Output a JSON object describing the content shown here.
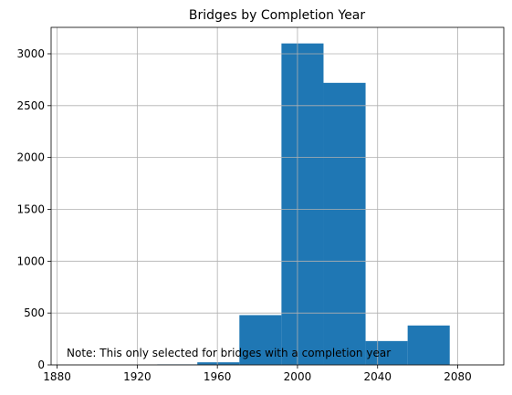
{
  "chart_data": {
    "type": "bar",
    "title": "Bridges by Completion Year",
    "xlabel": "",
    "ylabel": "",
    "bins": [
      {
        "x0": 1930,
        "x1": 1950,
        "count": 5
      },
      {
        "x0": 1950,
        "x1": 1971,
        "count": 25
      },
      {
        "x0": 1971,
        "x1": 1992,
        "count": 480
      },
      {
        "x0": 1992,
        "x1": 2013,
        "count": 3100
      },
      {
        "x0": 2013,
        "x1": 2034,
        "count": 2720
      },
      {
        "x0": 2034,
        "x1": 2055,
        "count": 230
      },
      {
        "x0": 2055,
        "x1": 2076,
        "count": 380
      }
    ],
    "xlim": [
      1877,
      2103
    ],
    "ylim": [
      0,
      3255
    ],
    "xticks": [
      "1880",
      "1920",
      "1960",
      "2000",
      "2040",
      "2080"
    ],
    "yticks": [
      "0",
      "500",
      "1000",
      "1500",
      "2000",
      "2500",
      "3000"
    ],
    "grid": true,
    "bar_color": "#1f77b4",
    "annotation": "Note: This only selected for bridges with a completion year"
  }
}
